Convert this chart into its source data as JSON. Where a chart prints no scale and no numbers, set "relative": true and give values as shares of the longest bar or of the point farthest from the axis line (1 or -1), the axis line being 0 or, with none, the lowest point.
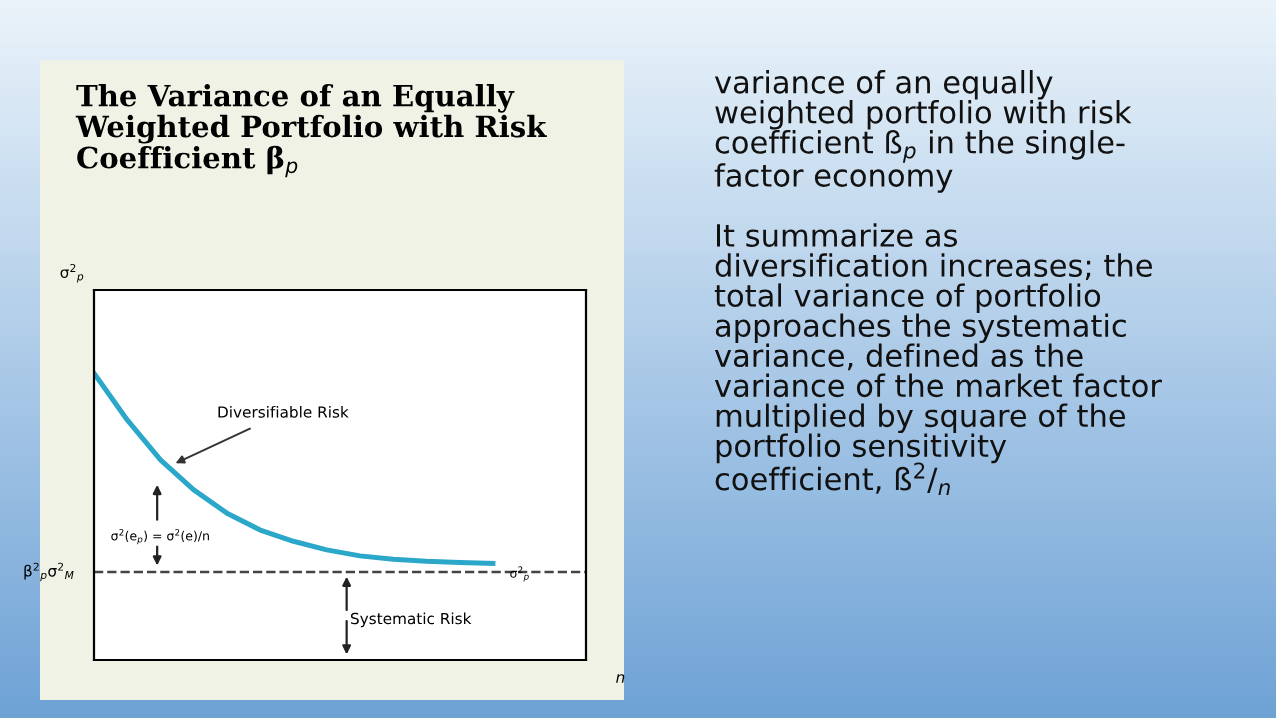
{
  "chart_data": {
    "type": "line",
    "relative": true,
    "title": "The Variance of an Equally\nWeighted Portfolio with Risk\nCoefficient β$_{p}$",
    "xlabel": "n",
    "categories": [
      null,
      null,
      null,
      null,
      null,
      null,
      null,
      null,
      null,
      null,
      null,
      null,
      null,
      null,
      null
    ],
    "series": [
      {
        "color": "#2aa7c9",
        "values": [
          1,
          0.837,
          0.698,
          0.593,
          0.512,
          0.453,
          0.414,
          0.384,
          0.363,
          0.351,
          0.344,
          0.34,
          0.337,
          null,
          null
        ]
      }
    ],
    "ref_lines": [
      {
        "axis": "y",
        "value": 0.307,
        "label": "β$^{2}$$_{p}$σ$^{2}$$_{M}$",
        "color": "#444444",
        "line_style": "dashed"
      }
    ],
    "marker": "none",
    "line_style": "solid",
    "annotations": [
      "Diversifiable Risk",
      "σ$^{2}$(e$_{p}$) = σ$^{2}$(e)/n",
      "Systematic Risk",
      "σ$^{2}$$_{p}$",
      "σ$^{2}$$_{p}$",
      "variance of an equally\nweighted portfolio with risk\ncoefficient ß$_{p}$ in the single-\nfactor economy\n\nIt summarize as\ndiversification increases; the\ntotal variance of portfolio\napproaches the systematic\nvariance, defined as the\nvariance of the market factor\nmultiplied by square of the\nportfolio sensitivity\ncoefficient, ß$^{2}$/$_{n}$"
    ]
  }
}
